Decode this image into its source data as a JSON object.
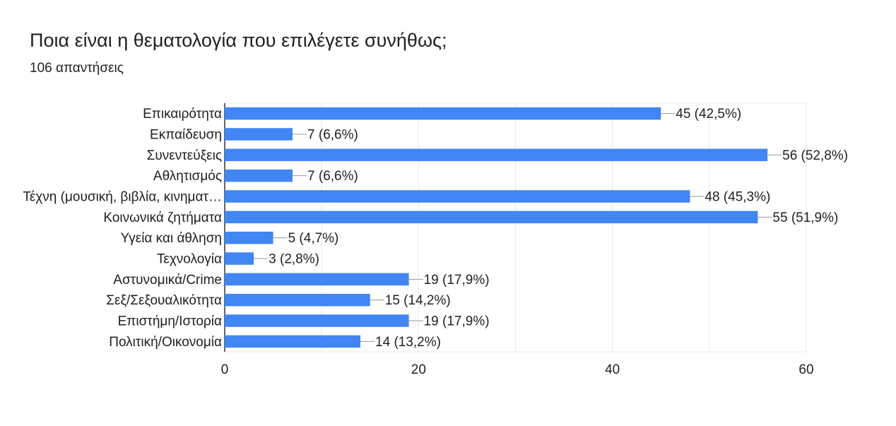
{
  "header": {
    "title": "Ποια είναι η θεματολογία που επιλέγετε συνήθως;",
    "responses": "106 απαντήσεις"
  },
  "chart_data": {
    "type": "bar",
    "orientation": "horizontal",
    "categories": [
      "Επικαιρότητα",
      "Εκπαίδευση",
      "Συνεντεύξεις",
      "Αθλητισμός",
      "Τέχνη (μουσική, βιβλία, κινηματ…",
      "Κοινωνικά ζητήματα",
      "Υγεία και άθληση",
      "Τεχνολογία",
      "Αστυνομικά/Crime",
      "Σεξ/Σεξουαλικότητα",
      "Επιστήμη/Ιστορία",
      "Πολιτική/Οικονομία"
    ],
    "values": [
      45,
      7,
      56,
      7,
      48,
      55,
      5,
      3,
      19,
      15,
      19,
      14
    ],
    "data_labels": [
      "45 (42,5%)",
      "7 (6,6%)",
      "56 (52,8%)",
      "7 (6,6%)",
      "48 (45,3%)",
      "55 (51,9%)",
      "5 (4,7%)",
      "3 (2,8%)",
      "19 (17,9%)",
      "15 (14,2%)",
      "19 (17,9%)",
      "14 (13,2%)"
    ],
    "x_ticks": [
      "0",
      "20",
      "40",
      "60"
    ],
    "xlim": [
      0,
      60
    ],
    "grid": true,
    "legend": "none",
    "colors": {
      "bar": "#4285f4",
      "grid": "#e8e8e8",
      "axis": "#333333",
      "leader": "#999999"
    }
  }
}
